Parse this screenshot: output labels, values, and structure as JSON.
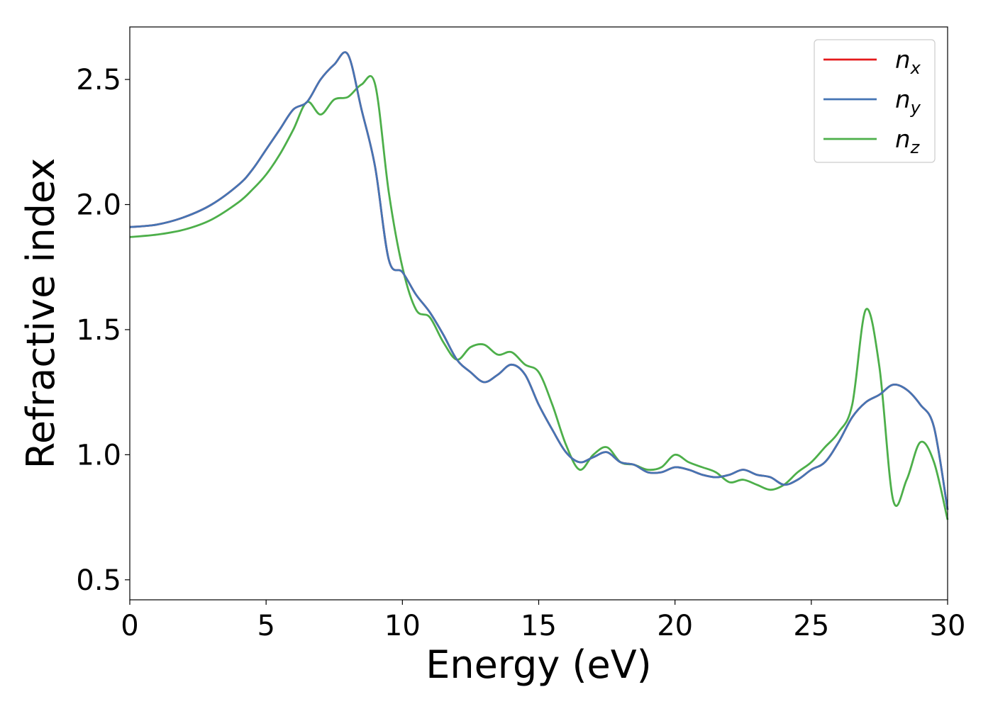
{
  "chart_data": {
    "type": "line",
    "title": "",
    "xlabel": "Energy (eV)",
    "ylabel": "Refractive index",
    "xlim": [
      0,
      30
    ],
    "ylim": [
      0.42,
      2.71
    ],
    "xticks": [
      0,
      5,
      10,
      15,
      20,
      25,
      30
    ],
    "yticks": [
      0.5,
      1.0,
      1.5,
      2.0,
      2.5
    ],
    "xtick_labels": [
      "0",
      "5",
      "10",
      "15",
      "20",
      "25",
      "30"
    ],
    "ytick_labels": [
      "0.5",
      "1.0",
      "1.5",
      "2.0",
      "2.5"
    ],
    "grid": false,
    "legend_position": "top-right",
    "series": [
      {
        "name": "n_x",
        "legend_base": "n",
        "legend_sub": "x",
        "color": "#e41a1c",
        "x": [
          0,
          1,
          2,
          3,
          4,
          4.5,
          5,
          5.5,
          6,
          6.5,
          7,
          7.5,
          8,
          8.5,
          9,
          9.5,
          10,
          10.5,
          11,
          11.5,
          12,
          12.5,
          13,
          13.5,
          14,
          14.5,
          15,
          15.5,
          16,
          16.5,
          17,
          17.5,
          18,
          18.5,
          19,
          19.5,
          20,
          20.5,
          21,
          21.5,
          22,
          22.5,
          23,
          23.5,
          24,
          24.5,
          25,
          25.5,
          26,
          26.5,
          27,
          27.5,
          28,
          28.5,
          29,
          29.5,
          30
        ],
        "y": [
          1.91,
          1.92,
          1.95,
          2.0,
          2.08,
          2.14,
          2.22,
          2.3,
          2.38,
          2.41,
          2.5,
          2.56,
          2.6,
          2.38,
          2.15,
          1.78,
          1.73,
          1.64,
          1.57,
          1.48,
          1.38,
          1.33,
          1.29,
          1.32,
          1.36,
          1.32,
          1.2,
          1.1,
          1.01,
          0.97,
          0.99,
          1.01,
          0.97,
          0.96,
          0.93,
          0.93,
          0.95,
          0.94,
          0.92,
          0.91,
          0.92,
          0.94,
          0.92,
          0.91,
          0.88,
          0.9,
          0.94,
          0.97,
          1.05,
          1.15,
          1.21,
          1.24,
          1.28,
          1.26,
          1.2,
          1.11,
          0.78
        ]
      },
      {
        "name": "n_y",
        "legend_base": "n",
        "legend_sub": "y",
        "color": "#4575b4",
        "x": [
          0,
          1,
          2,
          3,
          4,
          4.5,
          5,
          5.5,
          6,
          6.5,
          7,
          7.5,
          8,
          8.5,
          9,
          9.5,
          10,
          10.5,
          11,
          11.5,
          12,
          12.5,
          13,
          13.5,
          14,
          14.5,
          15,
          15.5,
          16,
          16.5,
          17,
          17.5,
          18,
          18.5,
          19,
          19.5,
          20,
          20.5,
          21,
          21.5,
          22,
          22.5,
          23,
          23.5,
          24,
          24.5,
          25,
          25.5,
          26,
          26.5,
          27,
          27.5,
          28,
          28.5,
          29,
          29.5,
          30
        ],
        "y": [
          1.91,
          1.92,
          1.95,
          2.0,
          2.08,
          2.14,
          2.22,
          2.3,
          2.38,
          2.41,
          2.5,
          2.56,
          2.6,
          2.38,
          2.15,
          1.78,
          1.73,
          1.64,
          1.57,
          1.48,
          1.38,
          1.33,
          1.29,
          1.32,
          1.36,
          1.32,
          1.2,
          1.1,
          1.01,
          0.97,
          0.99,
          1.01,
          0.97,
          0.96,
          0.93,
          0.93,
          0.95,
          0.94,
          0.92,
          0.91,
          0.92,
          0.94,
          0.92,
          0.91,
          0.88,
          0.9,
          0.94,
          0.97,
          1.05,
          1.15,
          1.21,
          1.24,
          1.28,
          1.26,
          1.2,
          1.11,
          0.78
        ]
      },
      {
        "name": "n_z",
        "legend_base": "n",
        "legend_sub": "z",
        "color": "#4daf4a",
        "x": [
          0,
          1,
          2,
          3,
          4,
          4.5,
          5,
          5.5,
          6,
          6.5,
          7,
          7.5,
          8,
          8.5,
          9,
          9.5,
          10,
          10.5,
          11,
          11.5,
          12,
          12.5,
          13,
          13.5,
          14,
          14.5,
          15,
          15.5,
          16,
          16.5,
          17,
          17.5,
          18,
          18.5,
          19,
          19.5,
          20,
          20.5,
          21,
          21.5,
          22,
          22.5,
          23,
          23.5,
          24,
          24.5,
          25,
          25.5,
          26,
          26.5,
          27,
          27.5,
          28,
          28.5,
          29,
          29.5,
          30
        ],
        "y": [
          1.87,
          1.88,
          1.9,
          1.94,
          2.01,
          2.06,
          2.12,
          2.2,
          2.3,
          2.41,
          2.36,
          2.42,
          2.43,
          2.48,
          2.48,
          2.05,
          1.75,
          1.58,
          1.55,
          1.45,
          1.38,
          1.43,
          1.44,
          1.4,
          1.41,
          1.36,
          1.33,
          1.2,
          1.04,
          0.94,
          1.0,
          1.03,
          0.97,
          0.96,
          0.94,
          0.95,
          1.0,
          0.97,
          0.95,
          0.93,
          0.89,
          0.9,
          0.88,
          0.86,
          0.88,
          0.93,
          0.97,
          1.03,
          1.09,
          1.2,
          1.58,
          1.35,
          0.82,
          0.9,
          1.05,
          0.97,
          0.74
        ]
      }
    ]
  }
}
